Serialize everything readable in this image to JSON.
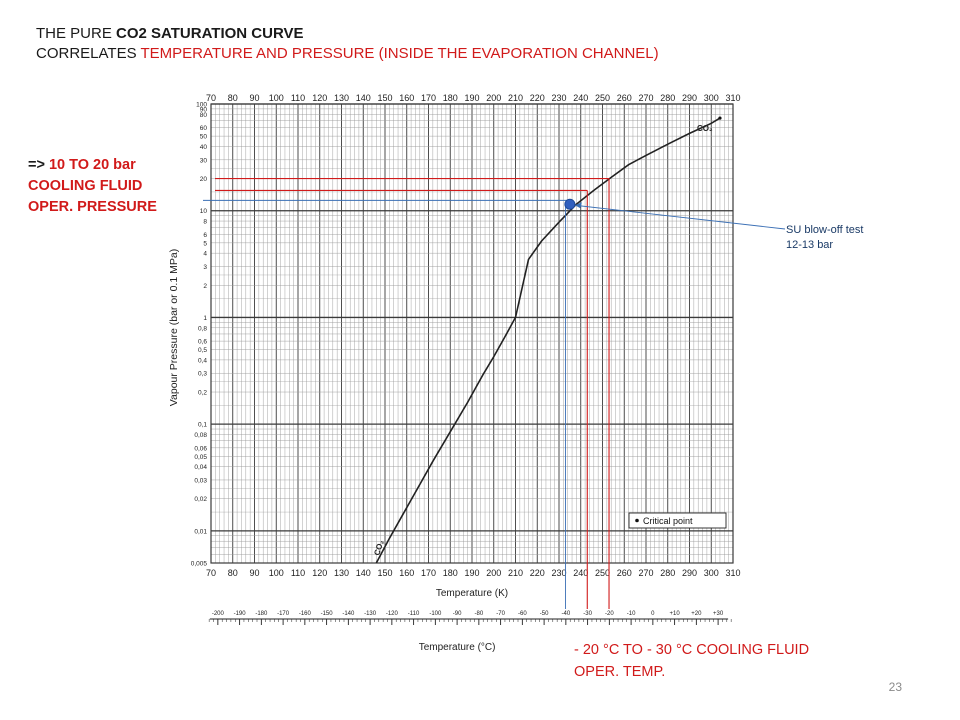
{
  "slide": {
    "title_prefix": "THE PURE ",
    "title_bold": "CO2 SATURATION CURVE",
    "subtitle_prefix": "CORRELATES ",
    "subtitle_red": "TEMPERATURE AND PRESSURE (INSIDE THE EVAPORATION CHANNEL)",
    "pressure_note": [
      "=> ",
      "10 TO 20 bar",
      "COOLING FLUID",
      "OPER. PRESSURE"
    ],
    "temp_note": [
      "- 20 °C TO - 30 °C COOLING FLUID",
      "OPER. TEMP."
    ],
    "su_note": [
      "SU blow-off test",
      "12-13 bar"
    ],
    "slide_number": "23"
  },
  "colors": {
    "text": "#1a1a1a",
    "highlight": "#d11a1a",
    "annotation_blue": "#3a6fb5",
    "curve": "#222222",
    "marker": "#2f5fbf",
    "grid_major": "#3a3a3a",
    "grid_minor": "#9a9a9a"
  },
  "chart_data": {
    "type": "line",
    "ylabel": "Vapour Pressure (bar or 0.1 MPa)",
    "xlabel": "Temperature (K)",
    "xlabel_celsius": "Temperature (°C)",
    "curve_label": "CO₂",
    "legend": "Critical point",
    "legend_placement": "bottom-right",
    "grid": true,
    "y_scale": "log",
    "ylim": [
      0.005,
      100
    ],
    "xlim": [
      70,
      310
    ],
    "x_ticks": [
      70,
      80,
      90,
      100,
      110,
      120,
      130,
      140,
      150,
      160,
      170,
      180,
      190,
      200,
      210,
      220,
      230,
      240,
      250,
      260,
      270,
      280,
      290,
      300,
      310
    ],
    "y_tick_labels": [
      {
        "v": 100,
        "t": "100"
      },
      {
        "v": 90,
        "t": "90"
      },
      {
        "v": 80,
        "t": "80"
      },
      {
        "v": 60,
        "t": "60"
      },
      {
        "v": 50,
        "t": "50"
      },
      {
        "v": 40,
        "t": "40"
      },
      {
        "v": 30,
        "t": "30"
      },
      {
        "v": 20,
        "t": "20"
      },
      {
        "v": 10,
        "t": "10"
      },
      {
        "v": 8,
        "t": "8"
      },
      {
        "v": 6,
        "t": "6"
      },
      {
        "v": 5,
        "t": "5"
      },
      {
        "v": 4,
        "t": "4"
      },
      {
        "v": 3,
        "t": "3"
      },
      {
        "v": 2,
        "t": "2"
      },
      {
        "v": 1,
        "t": "1"
      },
      {
        "v": 0.8,
        "t": "0,8"
      },
      {
        "v": 0.6,
        "t": "0,6"
      },
      {
        "v": 0.5,
        "t": "0,5"
      },
      {
        "v": 0.4,
        "t": "0,4"
      },
      {
        "v": 0.3,
        "t": "0,3"
      },
      {
        "v": 0.2,
        "t": "0,2"
      },
      {
        "v": 0.1,
        "t": "0,1"
      },
      {
        "v": 0.08,
        "t": "0,08"
      },
      {
        "v": 0.06,
        "t": "0,06"
      },
      {
        "v": 0.05,
        "t": "0,05"
      },
      {
        "v": 0.04,
        "t": "0,04"
      },
      {
        "v": 0.03,
        "t": "0,03"
      },
      {
        "v": 0.02,
        "t": "0,02"
      },
      {
        "v": 0.01,
        "t": "0,01"
      },
      {
        "v": 0.005,
        "t": "0,005"
      }
    ],
    "celsius_ticks": [
      {
        "v": -200,
        "t": "-200"
      },
      {
        "v": -190,
        "t": "-190"
      },
      {
        "v": -180,
        "t": "-180"
      },
      {
        "v": -170,
        "t": "-170"
      },
      {
        "v": -160,
        "t": "-160"
      },
      {
        "v": -150,
        "t": "-150"
      },
      {
        "v": -140,
        "t": "-140"
      },
      {
        "v": -130,
        "t": "-130"
      },
      {
        "v": -120,
        "t": "-120"
      },
      {
        "v": -110,
        "t": "-110"
      },
      {
        "v": -100,
        "t": "-100"
      },
      {
        "v": -90,
        "t": "-90"
      },
      {
        "v": -80,
        "t": "-80"
      },
      {
        "v": -70,
        "t": "-70"
      },
      {
        "v": -60,
        "t": "-60"
      },
      {
        "v": -50,
        "t": "-50"
      },
      {
        "v": -40,
        "t": "-40"
      },
      {
        "v": -30,
        "t": "-30"
      },
      {
        "v": -20,
        "t": "-20"
      },
      {
        "v": -10,
        "t": "-10"
      },
      {
        "v": 0,
        "t": "0"
      },
      {
        "v": 10,
        "t": "+10"
      },
      {
        "v": 20,
        "t": "+20"
      },
      {
        "v": 30,
        "t": "+30"
      }
    ],
    "series": [
      {
        "x": [
          146,
          152,
          158,
          165,
          172,
          180,
          188,
          195,
          200,
          205,
          210,
          216,
          222,
          230,
          238,
          246,
          254,
          262,
          270,
          280,
          290,
          300,
          304
        ],
        "y": [
          0.005,
          0.0085,
          0.014,
          0.025,
          0.045,
          0.085,
          0.16,
          0.29,
          0.43,
          0.65,
          1.0,
          3.5,
          5.2,
          7.8,
          11.5,
          15.5,
          20.5,
          27,
          33,
          42,
          53,
          66,
          73.8
        ]
      }
    ],
    "critical_point": {
      "x": 304,
      "y": 73.8
    },
    "marker_point": {
      "x": 235,
      "y": 11.5
    },
    "red_h_lines_y": [
      20,
      15.5
    ],
    "red_v_lines_x": [
      243,
      253
    ],
    "blue_h_line_y": 12.5,
    "blue_v_line_x": 233
  }
}
